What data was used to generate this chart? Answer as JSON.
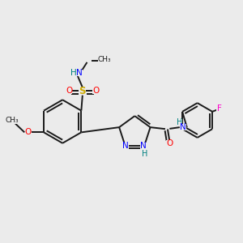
{
  "bg_color": "#ebebeb",
  "bond_color": "#1a1a1a",
  "atom_colors": {
    "N": "#0000ff",
    "O": "#ff0000",
    "S": "#ccaa00",
    "F": "#ff00cc",
    "H": "#008080",
    "C": "#1a1a1a"
  },
  "lw": 1.4
}
